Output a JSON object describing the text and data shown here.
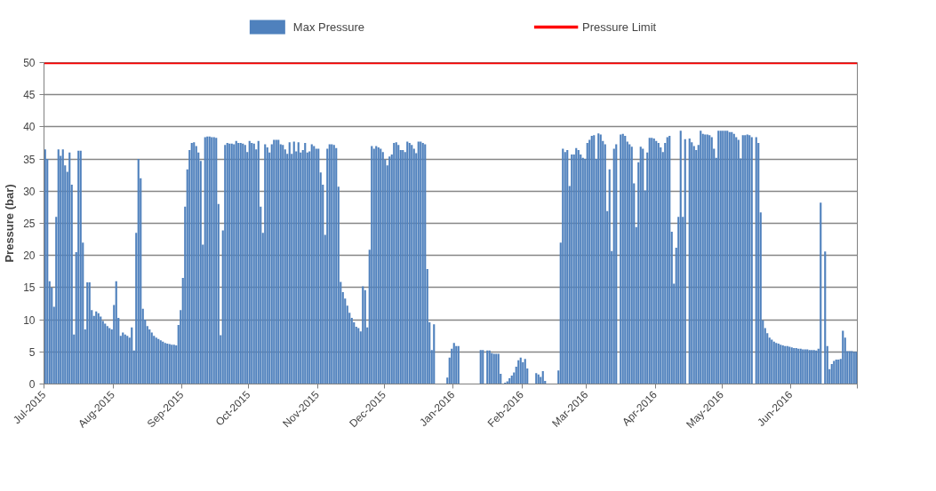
{
  "chart_data": {
    "type": "bar",
    "ylabel": "Pressure (bar)",
    "ylim": [
      0,
      50
    ],
    "yticks": [
      0,
      5,
      10,
      15,
      20,
      25,
      30,
      35,
      40,
      45,
      50
    ],
    "xlim": [
      "2015-07-01",
      "2016-07-01"
    ],
    "xticks": [
      {
        "value": "2015-07-01",
        "label": "Jul-2015"
      },
      {
        "value": "2015-08-01",
        "label": "Aug-2015"
      },
      {
        "value": "2015-09-01",
        "label": "Sep-2015"
      },
      {
        "value": "2015-10-01",
        "label": "Oct-2015"
      },
      {
        "value": "2015-11-01",
        "label": "Nov-2015"
      },
      {
        "value": "2015-12-01",
        "label": "Dec-2015"
      },
      {
        "value": "2016-01-01",
        "label": "Jan-2016"
      },
      {
        "value": "2016-02-01",
        "label": "Feb-2016"
      },
      {
        "value": "2016-03-01",
        "label": "Mar-2016"
      },
      {
        "value": "2016-04-01",
        "label": "Apr-2016"
      },
      {
        "value": "2016-05-01",
        "label": "May-2016"
      },
      {
        "value": "2016-06-01",
        "label": "Jun-2016"
      },
      {
        "value": "2016-07-01",
        "label": null
      }
    ],
    "grid": "y",
    "legend": "top",
    "series": [
      {
        "name": "Max Pressure",
        "color": "#4f81bd",
        "x": [
          "2015-07-01",
          "2015-07-02",
          "2015-07-03",
          "2015-07-04",
          "2015-07-05",
          "2015-07-06",
          "2015-07-07",
          "2015-07-08",
          "2015-07-09",
          "2015-07-10",
          "2015-07-11",
          "2015-07-12",
          "2015-07-13",
          "2015-07-14",
          "2015-07-15",
          "2015-07-16",
          "2015-07-17",
          "2015-07-18",
          "2015-07-19",
          "2015-07-20",
          "2015-07-21",
          "2015-07-22",
          "2015-07-23",
          "2015-07-24",
          "2015-07-25",
          "2015-07-26",
          "2015-07-27",
          "2015-07-28",
          "2015-07-29",
          "2015-07-30",
          "2015-07-31",
          "2015-08-01",
          "2015-08-02",
          "2015-08-03",
          "2015-08-04",
          "2015-08-05",
          "2015-08-06",
          "2015-08-07",
          "2015-08-08",
          "2015-08-09",
          "2015-08-10",
          "2015-08-11",
          "2015-08-12",
          "2015-08-13",
          "2015-08-14",
          "2015-08-15",
          "2015-08-16",
          "2015-08-17",
          "2015-08-18",
          "2015-08-19",
          "2015-08-20",
          "2015-08-21",
          "2015-08-22",
          "2015-08-23",
          "2015-08-24",
          "2015-08-25",
          "2015-08-26",
          "2015-08-27",
          "2015-08-28",
          "2015-08-29",
          "2015-08-30",
          "2015-08-31",
          "2015-09-01",
          "2015-09-02",
          "2015-09-03",
          "2015-09-04",
          "2015-09-05",
          "2015-09-06",
          "2015-09-07",
          "2015-09-08",
          "2015-09-09",
          "2015-09-10",
          "2015-09-11",
          "2015-09-12",
          "2015-09-13",
          "2015-09-14",
          "2015-09-15",
          "2015-09-16",
          "2015-09-17",
          "2015-09-18",
          "2015-09-19",
          "2015-09-20",
          "2015-09-21",
          "2015-09-22",
          "2015-09-23",
          "2015-09-24",
          "2015-09-25",
          "2015-09-26",
          "2015-09-27",
          "2015-09-28",
          "2015-09-29",
          "2015-09-30",
          "2015-10-01",
          "2015-10-02",
          "2015-10-03",
          "2015-10-04",
          "2015-10-05",
          "2015-10-06",
          "2015-10-07",
          "2015-10-08",
          "2015-10-09",
          "2015-10-10",
          "2015-10-11",
          "2015-10-12",
          "2015-10-13",
          "2015-10-14",
          "2015-10-15",
          "2015-10-16",
          "2015-10-17",
          "2015-10-18",
          "2015-10-19",
          "2015-10-20",
          "2015-10-21",
          "2015-10-22",
          "2015-10-23",
          "2015-10-24",
          "2015-10-25",
          "2015-10-26",
          "2015-10-27",
          "2015-10-28",
          "2015-10-29",
          "2015-10-30",
          "2015-10-31",
          "2015-11-01",
          "2015-11-02",
          "2015-11-03",
          "2015-11-04",
          "2015-11-05",
          "2015-11-06",
          "2015-11-07",
          "2015-11-08",
          "2015-11-09",
          "2015-11-10",
          "2015-11-11",
          "2015-11-12",
          "2015-11-13",
          "2015-11-14",
          "2015-11-15",
          "2015-11-16",
          "2015-11-17",
          "2015-11-18",
          "2015-11-19",
          "2015-11-20",
          "2015-11-21",
          "2015-11-22",
          "2015-11-23",
          "2015-11-24",
          "2015-11-25",
          "2015-11-26",
          "2015-11-27",
          "2015-11-28",
          "2015-11-29",
          "2015-11-30",
          "2015-12-01",
          "2015-12-02",
          "2015-12-03",
          "2015-12-04",
          "2015-12-05",
          "2015-12-06",
          "2015-12-07",
          "2015-12-08",
          "2015-12-09",
          "2015-12-10",
          "2015-12-11",
          "2015-12-12",
          "2015-12-13",
          "2015-12-14",
          "2015-12-15",
          "2015-12-16",
          "2015-12-17",
          "2015-12-18",
          "2015-12-19",
          "2015-12-20",
          "2015-12-21",
          "2015-12-22",
          "2015-12-23",
          "2015-12-24",
          "2015-12-25",
          "2015-12-26",
          "2015-12-27",
          "2015-12-28",
          "2015-12-29",
          "2015-12-30",
          "2015-12-31",
          "2016-01-01",
          "2016-01-02",
          "2016-01-03",
          "2016-01-04",
          "2016-01-05",
          "2016-01-06",
          "2016-01-07",
          "2016-01-08",
          "2016-01-09",
          "2016-01-10",
          "2016-01-11",
          "2016-01-12",
          "2016-01-13",
          "2016-01-14",
          "2016-01-15",
          "2016-01-16",
          "2016-01-17",
          "2016-01-18",
          "2016-01-19",
          "2016-01-20",
          "2016-01-21",
          "2016-01-22",
          "2016-01-23",
          "2016-01-24",
          "2016-01-25",
          "2016-01-26",
          "2016-01-27",
          "2016-01-28",
          "2016-01-29",
          "2016-01-30",
          "2016-01-31",
          "2016-02-01",
          "2016-02-02",
          "2016-02-03",
          "2016-02-04",
          "2016-02-05",
          "2016-02-06",
          "2016-02-07",
          "2016-02-08",
          "2016-02-09",
          "2016-02-10",
          "2016-02-11",
          "2016-02-12",
          "2016-02-13",
          "2016-02-14",
          "2016-02-15",
          "2016-02-16",
          "2016-02-17",
          "2016-02-18",
          "2016-02-19",
          "2016-02-20",
          "2016-02-21",
          "2016-02-22",
          "2016-02-23",
          "2016-02-24",
          "2016-02-25",
          "2016-02-26",
          "2016-02-27",
          "2016-02-28",
          "2016-02-29",
          "2016-03-01",
          "2016-03-02",
          "2016-03-03",
          "2016-03-04",
          "2016-03-05",
          "2016-03-06",
          "2016-03-07",
          "2016-03-08",
          "2016-03-09",
          "2016-03-10",
          "2016-03-11",
          "2016-03-12",
          "2016-03-13",
          "2016-03-14",
          "2016-03-15",
          "2016-03-16",
          "2016-03-17",
          "2016-03-18",
          "2016-03-19",
          "2016-03-20",
          "2016-03-21",
          "2016-03-22",
          "2016-03-23",
          "2016-03-24",
          "2016-03-25",
          "2016-03-26",
          "2016-03-27",
          "2016-03-28",
          "2016-03-29",
          "2016-03-30",
          "2016-03-31",
          "2016-04-01",
          "2016-04-02",
          "2016-04-03",
          "2016-04-04",
          "2016-04-05",
          "2016-04-06",
          "2016-04-07",
          "2016-04-08",
          "2016-04-09",
          "2016-04-10",
          "2016-04-11",
          "2016-04-12",
          "2016-04-13",
          "2016-04-14",
          "2016-04-15",
          "2016-04-16",
          "2016-04-17",
          "2016-04-18",
          "2016-04-19",
          "2016-04-20",
          "2016-04-21",
          "2016-04-22",
          "2016-04-23",
          "2016-04-24",
          "2016-04-25",
          "2016-04-26",
          "2016-04-27",
          "2016-04-28",
          "2016-04-29",
          "2016-04-30",
          "2016-05-01",
          "2016-05-02",
          "2016-05-03",
          "2016-05-04",
          "2016-05-05",
          "2016-05-06",
          "2016-05-07",
          "2016-05-08",
          "2016-05-09",
          "2016-05-10",
          "2016-05-11",
          "2016-05-12",
          "2016-05-13",
          "2016-05-14",
          "2016-05-15",
          "2016-05-16",
          "2016-05-17",
          "2016-05-18",
          "2016-05-19",
          "2016-05-20",
          "2016-05-21",
          "2016-05-22",
          "2016-05-23",
          "2016-05-24",
          "2016-05-25",
          "2016-05-26",
          "2016-05-27",
          "2016-05-28",
          "2016-05-29",
          "2016-05-30",
          "2016-05-31",
          "2016-06-01",
          "2016-06-02",
          "2016-06-03",
          "2016-06-04",
          "2016-06-05",
          "2016-06-06",
          "2016-06-07",
          "2016-06-08",
          "2016-06-09",
          "2016-06-10",
          "2016-06-11",
          "2016-06-12",
          "2016-06-13",
          "2016-06-14",
          "2016-06-15",
          "2016-06-16",
          "2016-06-17",
          "2016-06-18",
          "2016-06-19",
          "2016-06-20",
          "2016-06-21",
          "2016-06-22",
          "2016-06-23",
          "2016-06-24",
          "2016-06-25",
          "2016-06-26",
          "2016-06-27",
          "2016-06-28",
          "2016-06-29",
          "2016-06-30"
        ],
        "values": [
          36.5,
          35,
          16,
          15,
          12,
          26,
          36.5,
          35.5,
          36.5,
          34,
          33,
          36,
          31,
          7.7,
          20.5,
          36.3,
          36.3,
          22,
          8.5,
          15.8,
          15.8,
          11.5,
          10.6,
          11.3,
          11,
          10.5,
          9.8,
          9.4,
          9,
          8.7,
          8.5,
          12.3,
          16,
          10.3,
          7.5,
          8,
          7.7,
          7.5,
          7.2,
          8.8,
          5.2,
          23.5,
          35,
          32,
          11.7,
          10,
          9,
          8.5,
          8,
          7.5,
          7.2,
          7,
          6.8,
          6.6,
          6.4,
          6.3,
          6.2,
          6.1,
          6.1,
          6,
          9.2,
          11.5,
          16.5,
          27.6,
          33.4,
          36.4,
          37.5,
          37.6,
          37,
          36,
          34.7,
          21.7,
          38.4,
          38.5,
          38.5,
          38.4,
          38.4,
          38.3,
          28,
          7.6,
          23.9,
          37.2,
          37.5,
          37.4,
          37.4,
          37.3,
          37.8,
          37.5,
          37.5,
          37.4,
          37.2,
          36.1,
          37.8,
          37.5,
          37.4,
          36.5,
          37.8,
          27.6,
          23.5,
          37.3,
          36.8,
          36,
          37.3,
          38,
          38,
          38,
          37.3,
          37.2,
          36.5,
          35.8,
          37.6,
          35.8,
          37.7,
          36.2,
          37.6,
          36,
          36.4,
          37.5,
          36,
          36.2,
          37.3,
          37,
          36.6,
          36.6,
          32.9,
          31,
          23.2,
          36.6,
          37.3,
          37.3,
          37.2,
          36.7,
          30.7,
          15.9,
          14.3,
          13.3,
          12.2,
          11.1,
          10.3,
          9.6,
          8.9,
          8.7,
          8.2,
          15.2,
          14.6,
          8.8,
          20.9,
          37,
          36.6,
          37,
          36.8,
          36.6,
          36.1,
          34.9,
          34,
          35.4,
          35.7,
          37.5,
          37.6,
          37.2,
          36.4,
          36.4,
          36.1,
          37.7,
          37.5,
          37.2,
          36.6,
          35.9,
          37.7,
          37.7,
          37.5,
          37.3,
          17.9,
          9.6,
          5.3,
          9.3,
          null,
          null,
          null,
          null,
          null,
          1,
          4.1,
          5.5,
          6.4,
          5.9,
          5.9,
          null,
          null,
          null,
          null,
          null,
          null,
          null,
          null,
          null,
          5.3,
          5.3,
          null,
          5.2,
          5.2,
          4.8,
          4.7,
          4.7,
          4.7,
          1.6,
          null,
          0.2,
          0.4,
          0.9,
          1.3,
          1.8,
          2.7,
          3.7,
          4.1,
          3.4,
          3.9,
          2.4,
          null,
          null,
          null,
          1.7,
          1.5,
          1.1,
          2,
          0.5,
          null,
          null,
          null,
          null,
          null,
          2.1,
          22,
          36.6,
          36.1,
          36.4,
          30.8,
          35.7,
          35.7,
          36.7,
          36.4,
          35.7,
          35.2,
          35,
          37.5,
          38,
          38.6,
          38.7,
          35,
          39,
          38.8,
          37.8,
          37.3,
          26.9,
          33.4,
          20.7,
          36.6,
          37.3,
          null,
          38.8,
          38.9,
          38.6,
          37.7,
          37.3,
          36.9,
          31.2,
          24.4,
          34.5,
          36.9,
          36.6,
          30.1,
          36,
          38.3,
          38.3,
          38.2,
          37.8,
          37.5,
          36.8,
          36.1,
          37.5,
          38.4,
          38.6,
          23.7,
          15.6,
          21.2,
          26,
          39.4,
          26,
          38.1,
          null,
          38.2,
          37.6,
          37,
          36.4,
          37.2,
          39.4,
          38.9,
          38.8,
          38.8,
          38.7,
          38.4,
          36.6,
          35.2,
          39.4,
          39.4,
          39.4,
          39.4,
          39.4,
          39.2,
          39.2,
          38.9,
          38.4,
          38,
          35.1,
          38.7,
          38.7,
          38.8,
          38.7,
          38.4,
          null,
          38.4,
          37.5,
          26.7,
          9.9,
          8.7,
          7.9,
          7.2,
          6.9,
          6.6,
          6.4,
          6.3,
          6.1,
          6,
          5.9,
          5.9,
          5.8,
          5.7,
          5.6,
          5.6,
          5.5,
          5.5,
          5.4,
          5.4,
          5.4,
          5.3,
          5.3,
          5.3,
          5.2,
          5.5,
          28.2,
          null,
          20.6,
          5.9,
          2.3,
          3.1,
          3.6,
          3.8,
          3.8,
          3.9,
          8.3,
          7.2,
          5.1,
          5.1,
          5.1,
          5,
          5
        ]
      },
      {
        "name": "Pressure Limit",
        "type": "line",
        "color": "#ff0000",
        "x": [
          "2015-07-01",
          "2016-07-01"
        ],
        "values": [
          50,
          50
        ]
      }
    ]
  }
}
